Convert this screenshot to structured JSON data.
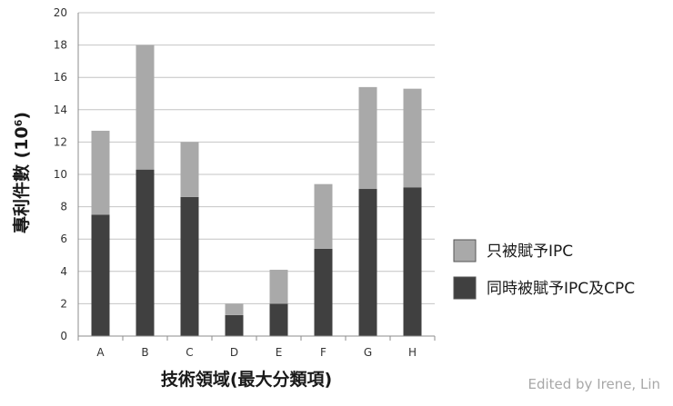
{
  "chart_data": {
    "type": "bar",
    "stacked": true,
    "categories": [
      "A",
      "B",
      "C",
      "D",
      "E",
      "F",
      "G",
      "H"
    ],
    "series": [
      {
        "name": "同時被賦予IPC及CPC",
        "color": "#404040",
        "values": [
          7.5,
          10.3,
          8.6,
          1.3,
          2.0,
          5.4,
          9.1,
          9.2
        ]
      },
      {
        "name": "只被賦予IPC",
        "color": "#a9a9a9",
        "values": [
          5.2,
          7.7,
          3.4,
          0.7,
          2.1,
          4.0,
          6.3,
          6.1
        ]
      }
    ],
    "xlabel": "技術領域(最大分類項)",
    "ylabel": "專利件數 (10",
    "ylabel_superscript": "6",
    "ylabel_suffix": ")",
    "ylim": [
      0,
      20
    ],
    "yticks": [
      0,
      2,
      4,
      6,
      8,
      10,
      12,
      14,
      16,
      18,
      20
    ],
    "grid": true,
    "legend_position": "right"
  },
  "credit": "Edited by Irene, Lin"
}
